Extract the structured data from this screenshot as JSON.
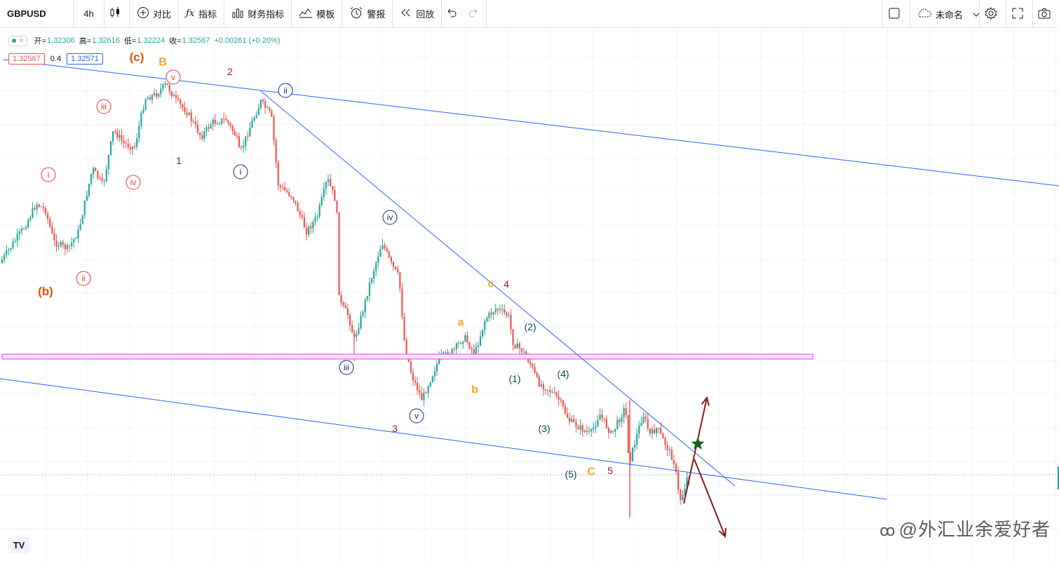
{
  "toolbar": {
    "symbol": "GBPUSD",
    "interval": "4h",
    "compare": "对比",
    "indicators": "指标",
    "financials": "财务指标",
    "templates": "模板",
    "alert": "警报",
    "replay": "回放",
    "layout_name": "未命名"
  },
  "legend": {
    "open_label": "开=",
    "open": "1.32306",
    "high_label": "高=",
    "high": "1.32616",
    "low_label": "低=",
    "low": "1.32224",
    "close_label": "收=",
    "close": "1.32567",
    "change": "+0.00261 (+0.20%)"
  },
  "price_boxes": {
    "sell": "1.32567",
    "spread": "0.4",
    "buy": "1.32571"
  },
  "colors": {
    "up": "#26a69a",
    "down": "#ef5350",
    "trendline": "#2962ff",
    "zone": "#e040fb",
    "wave_red": "#e53935",
    "wave_navy": "#1a237e",
    "wave_maroon": "#8e1b36",
    "wave_orange": "#f5a623",
    "wave_brown": "#e65100",
    "wave_teal": "#0d4d4d",
    "arrow": "#8b1a1a",
    "star": "#1b5e20"
  },
  "watermark": "@外汇业余爱好者",
  "logo": "TV",
  "chart_data": {
    "type": "candlestick",
    "symbol": "GBPUSD",
    "interval": "4h",
    "ohlc_last": {
      "open": 1.32306,
      "high": 1.32616,
      "low": 1.32224,
      "close": 1.32567
    },
    "wave_labels": [
      {
        "text": "(b)",
        "style": "brown"
      },
      {
        "text": "i",
        "style": "red-circle"
      },
      {
        "text": "ii",
        "style": "red-circle"
      },
      {
        "text": "iii",
        "style": "red-circle"
      },
      {
        "text": "iv",
        "style": "red-circle"
      },
      {
        "text": "v",
        "style": "red-circle"
      },
      {
        "text": "(c)",
        "style": "brown"
      },
      {
        "text": "B",
        "style": "orange"
      },
      {
        "text": "1",
        "style": "maroon"
      },
      {
        "text": "2",
        "style": "maroon"
      },
      {
        "text": "i",
        "style": "navy-circle"
      },
      {
        "text": "ii",
        "style": "navy-circle"
      },
      {
        "text": "iii",
        "style": "navy-circle"
      },
      {
        "text": "iv",
        "style": "navy-circle"
      },
      {
        "text": "v",
        "style": "navy-circle"
      },
      {
        "text": "3",
        "style": "maroon"
      },
      {
        "text": "a",
        "style": "orange"
      },
      {
        "text": "b",
        "style": "orange"
      },
      {
        "text": "c",
        "style": "orange"
      },
      {
        "text": "4",
        "style": "maroon"
      },
      {
        "text": "(1)",
        "style": "teal"
      },
      {
        "text": "(2)",
        "style": "teal"
      },
      {
        "text": "(3)",
        "style": "teal"
      },
      {
        "text": "(4)",
        "style": "teal"
      },
      {
        "text": "(5)",
        "style": "teal"
      },
      {
        "text": "C",
        "style": "orange"
      },
      {
        "text": "5",
        "style": "maroon"
      }
    ]
  }
}
